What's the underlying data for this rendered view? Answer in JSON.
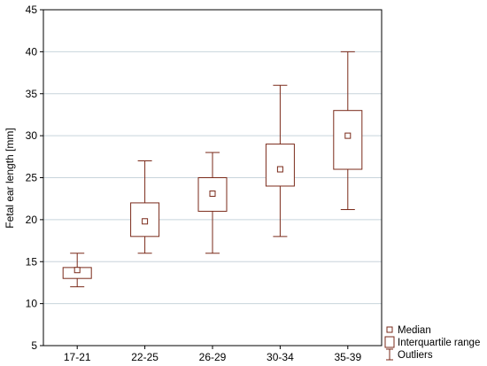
{
  "chart_data": {
    "type": "box",
    "title": "",
    "xlabel": "",
    "ylabel": "Fetal ear length [mm]",
    "ylim": [
      5,
      45
    ],
    "yticks": [
      5,
      10,
      15,
      20,
      25,
      30,
      35,
      40,
      45
    ],
    "grid": "horizontal",
    "legend_position": "bottom-right",
    "categories": [
      "17-21",
      "22-25",
      "26-29",
      "30-34",
      "35-39"
    ],
    "boxes": [
      {
        "category": "17-21",
        "median": 14,
        "q1": 13,
        "q3": 14.3,
        "min": 12,
        "max": 16
      },
      {
        "category": "22-25",
        "median": 19.8,
        "q1": 18,
        "q3": 22,
        "min": 16,
        "max": 27
      },
      {
        "category": "26-29",
        "median": 23.1,
        "q1": 21,
        "q3": 25,
        "min": 16,
        "max": 28
      },
      {
        "category": "30-34",
        "median": 26,
        "q1": 24,
        "q3": 29,
        "min": 18,
        "max": 36
      },
      {
        "category": "35-39",
        "median": 30,
        "q1": 26,
        "q3": 33,
        "min": 21.2,
        "max": 40
      }
    ],
    "legend": [
      {
        "key": "median",
        "label": "Median"
      },
      {
        "key": "iqr",
        "label": "Interquartile range"
      },
      {
        "key": "whisker",
        "label": "Outliers"
      }
    ],
    "colors": {
      "box": "#7a2a1a",
      "grid": "#c8d4dc",
      "axis": "#000000"
    }
  }
}
